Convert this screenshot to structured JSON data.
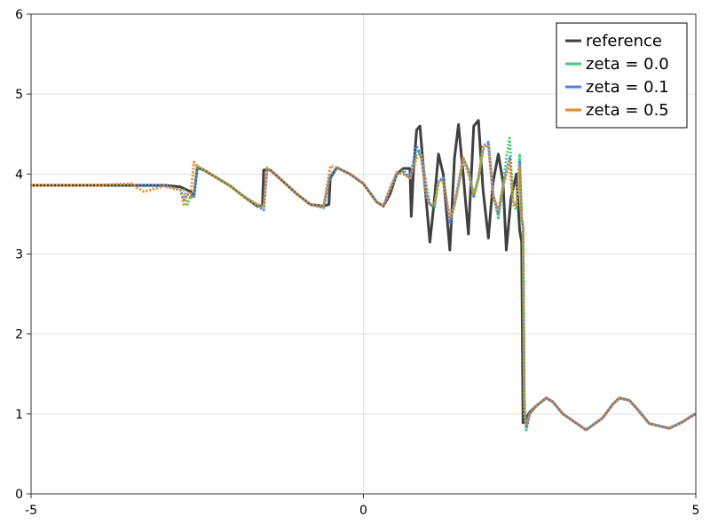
{
  "chart_data": {
    "type": "line",
    "title": "",
    "xlabel": "",
    "ylabel": "",
    "xlim": [
      -5,
      5
    ],
    "ylim": [
      0,
      6
    ],
    "xticks": [
      -5,
      0,
      5
    ],
    "xtick_labels": [
      "-5",
      "0",
      "5"
    ],
    "yticks": [
      0,
      1,
      2,
      3,
      4,
      5,
      6
    ],
    "ytick_labels": [
      "0",
      "1",
      "2",
      "3",
      "4",
      "5",
      "6"
    ],
    "grid": true,
    "legend_position": "top-right",
    "series": [
      {
        "name": "reference",
        "color": "#404040",
        "style": "solid",
        "x": [
          -5,
          -4.5,
          -4,
          -3.5,
          -3.0,
          -2.75,
          -2.6,
          -2.55,
          -2.5,
          -2.4,
          -2.2,
          -2.0,
          -1.8,
          -1.6,
          -1.55,
          -1.52,
          -1.5,
          -1.4,
          -1.2,
          -1.0,
          -0.8,
          -0.6,
          -0.52,
          -0.5,
          -0.4,
          -0.2,
          0,
          0.2,
          0.3,
          0.4,
          0.5,
          0.6,
          0.7,
          0.72,
          0.75,
          0.8,
          0.85,
          0.92,
          1.0,
          1.07,
          1.13,
          1.2,
          1.3,
          1.37,
          1.43,
          1.5,
          1.58,
          1.66,
          1.73,
          1.8,
          1.88,
          1.95,
          2.03,
          2.1,
          2.15,
          2.22,
          2.3,
          2.35,
          2.38,
          2.4,
          2.42,
          2.45,
          2.5,
          2.6,
          2.75,
          2.85,
          3.0,
          3.35,
          3.6,
          3.75,
          3.85,
          4.0,
          4.1,
          4.3,
          4.6,
          4.8,
          4.95,
          5.0
        ],
        "y": [
          3.86,
          3.86,
          3.86,
          3.86,
          3.86,
          3.84,
          3.78,
          3.72,
          4.08,
          4.05,
          3.95,
          3.85,
          3.72,
          3.6,
          3.6,
          3.6,
          4.05,
          4.05,
          3.9,
          3.75,
          3.62,
          3.6,
          3.62,
          3.95,
          4.08,
          4.0,
          3.88,
          3.65,
          3.6,
          3.75,
          4.0,
          4.07,
          4.07,
          3.47,
          4.0,
          4.55,
          4.6,
          3.9,
          3.15,
          3.7,
          4.25,
          4.0,
          3.05,
          4.2,
          4.62,
          4.0,
          3.25,
          4.6,
          4.67,
          3.8,
          3.2,
          3.9,
          4.25,
          3.9,
          3.05,
          3.7,
          4.0,
          3.3,
          3.15,
          0.89,
          0.92,
          0.95,
          1.02,
          1.1,
          1.2,
          1.15,
          1.0,
          0.8,
          0.95,
          1.12,
          1.2,
          1.17,
          1.08,
          0.88,
          0.82,
          0.9,
          0.98,
          1.0
        ]
      },
      {
        "name": "zeta = 0.0",
        "color": "#44c97a",
        "style": "dotted",
        "x": [
          -5,
          -4,
          -3.0,
          -2.7,
          -2.65,
          -2.6,
          -2.55,
          -2.5,
          -2.4,
          -2.2,
          -2.0,
          -1.8,
          -1.6,
          -1.5,
          -1.45,
          -1.4,
          -1.2,
          -1.0,
          -0.8,
          -0.6,
          -0.5,
          -0.4,
          -0.2,
          0,
          0.2,
          0.3,
          0.4,
          0.5,
          0.6,
          0.7,
          0.8,
          0.85,
          0.9,
          1.0,
          1.07,
          1.13,
          1.2,
          1.3,
          1.37,
          1.43,
          1.5,
          1.58,
          1.66,
          1.73,
          1.8,
          1.88,
          1.95,
          2.03,
          2.1,
          2.15,
          2.2,
          2.25,
          2.3,
          2.35,
          2.38,
          2.4,
          2.42,
          2.45,
          2.5,
          2.6,
          2.75,
          2.85,
          3.0,
          3.35,
          3.6,
          3.75,
          3.85,
          4.0,
          4.1,
          4.3,
          4.6,
          4.8,
          4.95,
          5.0
        ],
        "y": [
          3.86,
          3.86,
          3.85,
          3.8,
          3.62,
          3.72,
          3.7,
          4.1,
          4.05,
          3.95,
          3.85,
          3.72,
          3.62,
          3.58,
          4.05,
          4.05,
          3.9,
          3.75,
          3.62,
          3.58,
          3.98,
          4.08,
          4.0,
          3.88,
          3.65,
          3.6,
          3.8,
          3.98,
          4.05,
          3.95,
          4.25,
          4.3,
          4.1,
          3.62,
          3.58,
          3.9,
          3.95,
          3.42,
          3.62,
          3.85,
          4.2,
          4.05,
          3.72,
          3.95,
          4.3,
          4.38,
          3.75,
          3.45,
          3.85,
          4.2,
          4.45,
          3.62,
          3.55,
          4.25,
          3.45,
          3.3,
          1.2,
          0.8,
          1.0,
          1.1,
          1.2,
          1.15,
          1.0,
          0.8,
          0.95,
          1.12,
          1.2,
          1.17,
          1.08,
          0.88,
          0.82,
          0.9,
          0.98,
          1.0
        ]
      },
      {
        "name": "zeta = 0.1",
        "color": "#4e7ff0",
        "style": "dotted",
        "x": [
          -5,
          -4,
          -3.0,
          -2.75,
          -2.7,
          -2.65,
          -2.55,
          -2.5,
          -2.4,
          -2.2,
          -2.0,
          -1.8,
          -1.6,
          -1.5,
          -1.45,
          -1.4,
          -1.2,
          -1.0,
          -0.8,
          -0.6,
          -0.5,
          -0.4,
          -0.2,
          0,
          0.2,
          0.3,
          0.4,
          0.5,
          0.6,
          0.7,
          0.8,
          0.87,
          0.95,
          1.0,
          1.07,
          1.13,
          1.2,
          1.3,
          1.37,
          1.43,
          1.5,
          1.58,
          1.66,
          1.73,
          1.8,
          1.88,
          1.95,
          2.03,
          2.1,
          2.2,
          2.25,
          2.3,
          2.35,
          2.38,
          2.4,
          2.42,
          2.45,
          2.5,
          2.6,
          2.75,
          2.85,
          3.0,
          3.35,
          3.6,
          3.75,
          3.85,
          4.0,
          4.1,
          4.3,
          4.6,
          4.8,
          4.95,
          5.0
        ],
        "y": [
          3.86,
          3.86,
          3.86,
          3.8,
          3.68,
          3.75,
          3.72,
          4.1,
          4.05,
          3.95,
          3.85,
          3.72,
          3.6,
          3.55,
          4.05,
          4.05,
          3.9,
          3.75,
          3.62,
          3.58,
          3.98,
          4.08,
          4.0,
          3.88,
          3.65,
          3.6,
          3.82,
          4.0,
          4.02,
          3.95,
          4.35,
          4.2,
          3.75,
          3.62,
          3.6,
          3.92,
          3.95,
          3.38,
          3.62,
          3.88,
          4.2,
          4.05,
          3.72,
          3.95,
          4.35,
          4.4,
          3.75,
          3.5,
          3.85,
          4.2,
          3.65,
          3.6,
          4.15,
          3.45,
          3.35,
          1.05,
          0.82,
          1.0,
          1.1,
          1.2,
          1.15,
          1.0,
          0.8,
          0.95,
          1.12,
          1.2,
          1.17,
          1.08,
          0.88,
          0.82,
          0.9,
          0.98,
          1.0
        ]
      },
      {
        "name": "zeta = 0.5",
        "color": "#f08a14",
        "style": "dotted",
        "x": [
          -5,
          -4,
          -3.5,
          -3.3,
          -3.0,
          -2.75,
          -2.7,
          -2.65,
          -2.6,
          -2.55,
          -2.5,
          -2.4,
          -2.2,
          -2.0,
          -1.8,
          -1.6,
          -1.5,
          -1.45,
          -1.4,
          -1.2,
          -1.0,
          -0.8,
          -0.6,
          -0.5,
          -0.4,
          -0.2,
          0,
          0.2,
          0.3,
          0.4,
          0.5,
          0.6,
          0.7,
          0.8,
          0.87,
          0.95,
          1.0,
          1.07,
          1.13,
          1.2,
          1.3,
          1.37,
          1.43,
          1.5,
          1.58,
          1.66,
          1.73,
          1.8,
          1.88,
          1.95,
          2.03,
          2.1,
          2.2,
          2.25,
          2.3,
          2.35,
          2.38,
          2.4,
          2.42,
          2.45,
          2.5,
          2.6,
          2.75,
          2.85,
          3.0,
          3.35,
          3.6,
          3.75,
          3.85,
          4.0,
          4.1,
          4.3,
          4.6,
          4.8,
          4.95,
          5.0
        ],
        "y": [
          3.86,
          3.86,
          3.88,
          3.78,
          3.85,
          3.8,
          3.6,
          3.75,
          3.72,
          4.15,
          4.1,
          4.05,
          3.95,
          3.85,
          3.72,
          3.62,
          3.6,
          4.08,
          4.05,
          3.9,
          3.75,
          3.62,
          3.6,
          4.1,
          4.08,
          4.0,
          3.88,
          3.65,
          3.6,
          3.82,
          4.02,
          4.0,
          3.95,
          4.2,
          4.25,
          3.7,
          3.62,
          3.62,
          3.9,
          3.9,
          3.45,
          3.62,
          3.85,
          4.2,
          4.0,
          3.75,
          3.95,
          4.35,
          4.35,
          3.72,
          3.55,
          3.85,
          4.15,
          3.65,
          3.6,
          4.1,
          3.45,
          3.35,
          1.0,
          0.85,
          1.0,
          1.1,
          1.2,
          1.15,
          1.0,
          0.8,
          0.95,
          1.12,
          1.2,
          1.17,
          1.08,
          0.88,
          0.82,
          0.9,
          0.98,
          1.0
        ]
      }
    ]
  }
}
